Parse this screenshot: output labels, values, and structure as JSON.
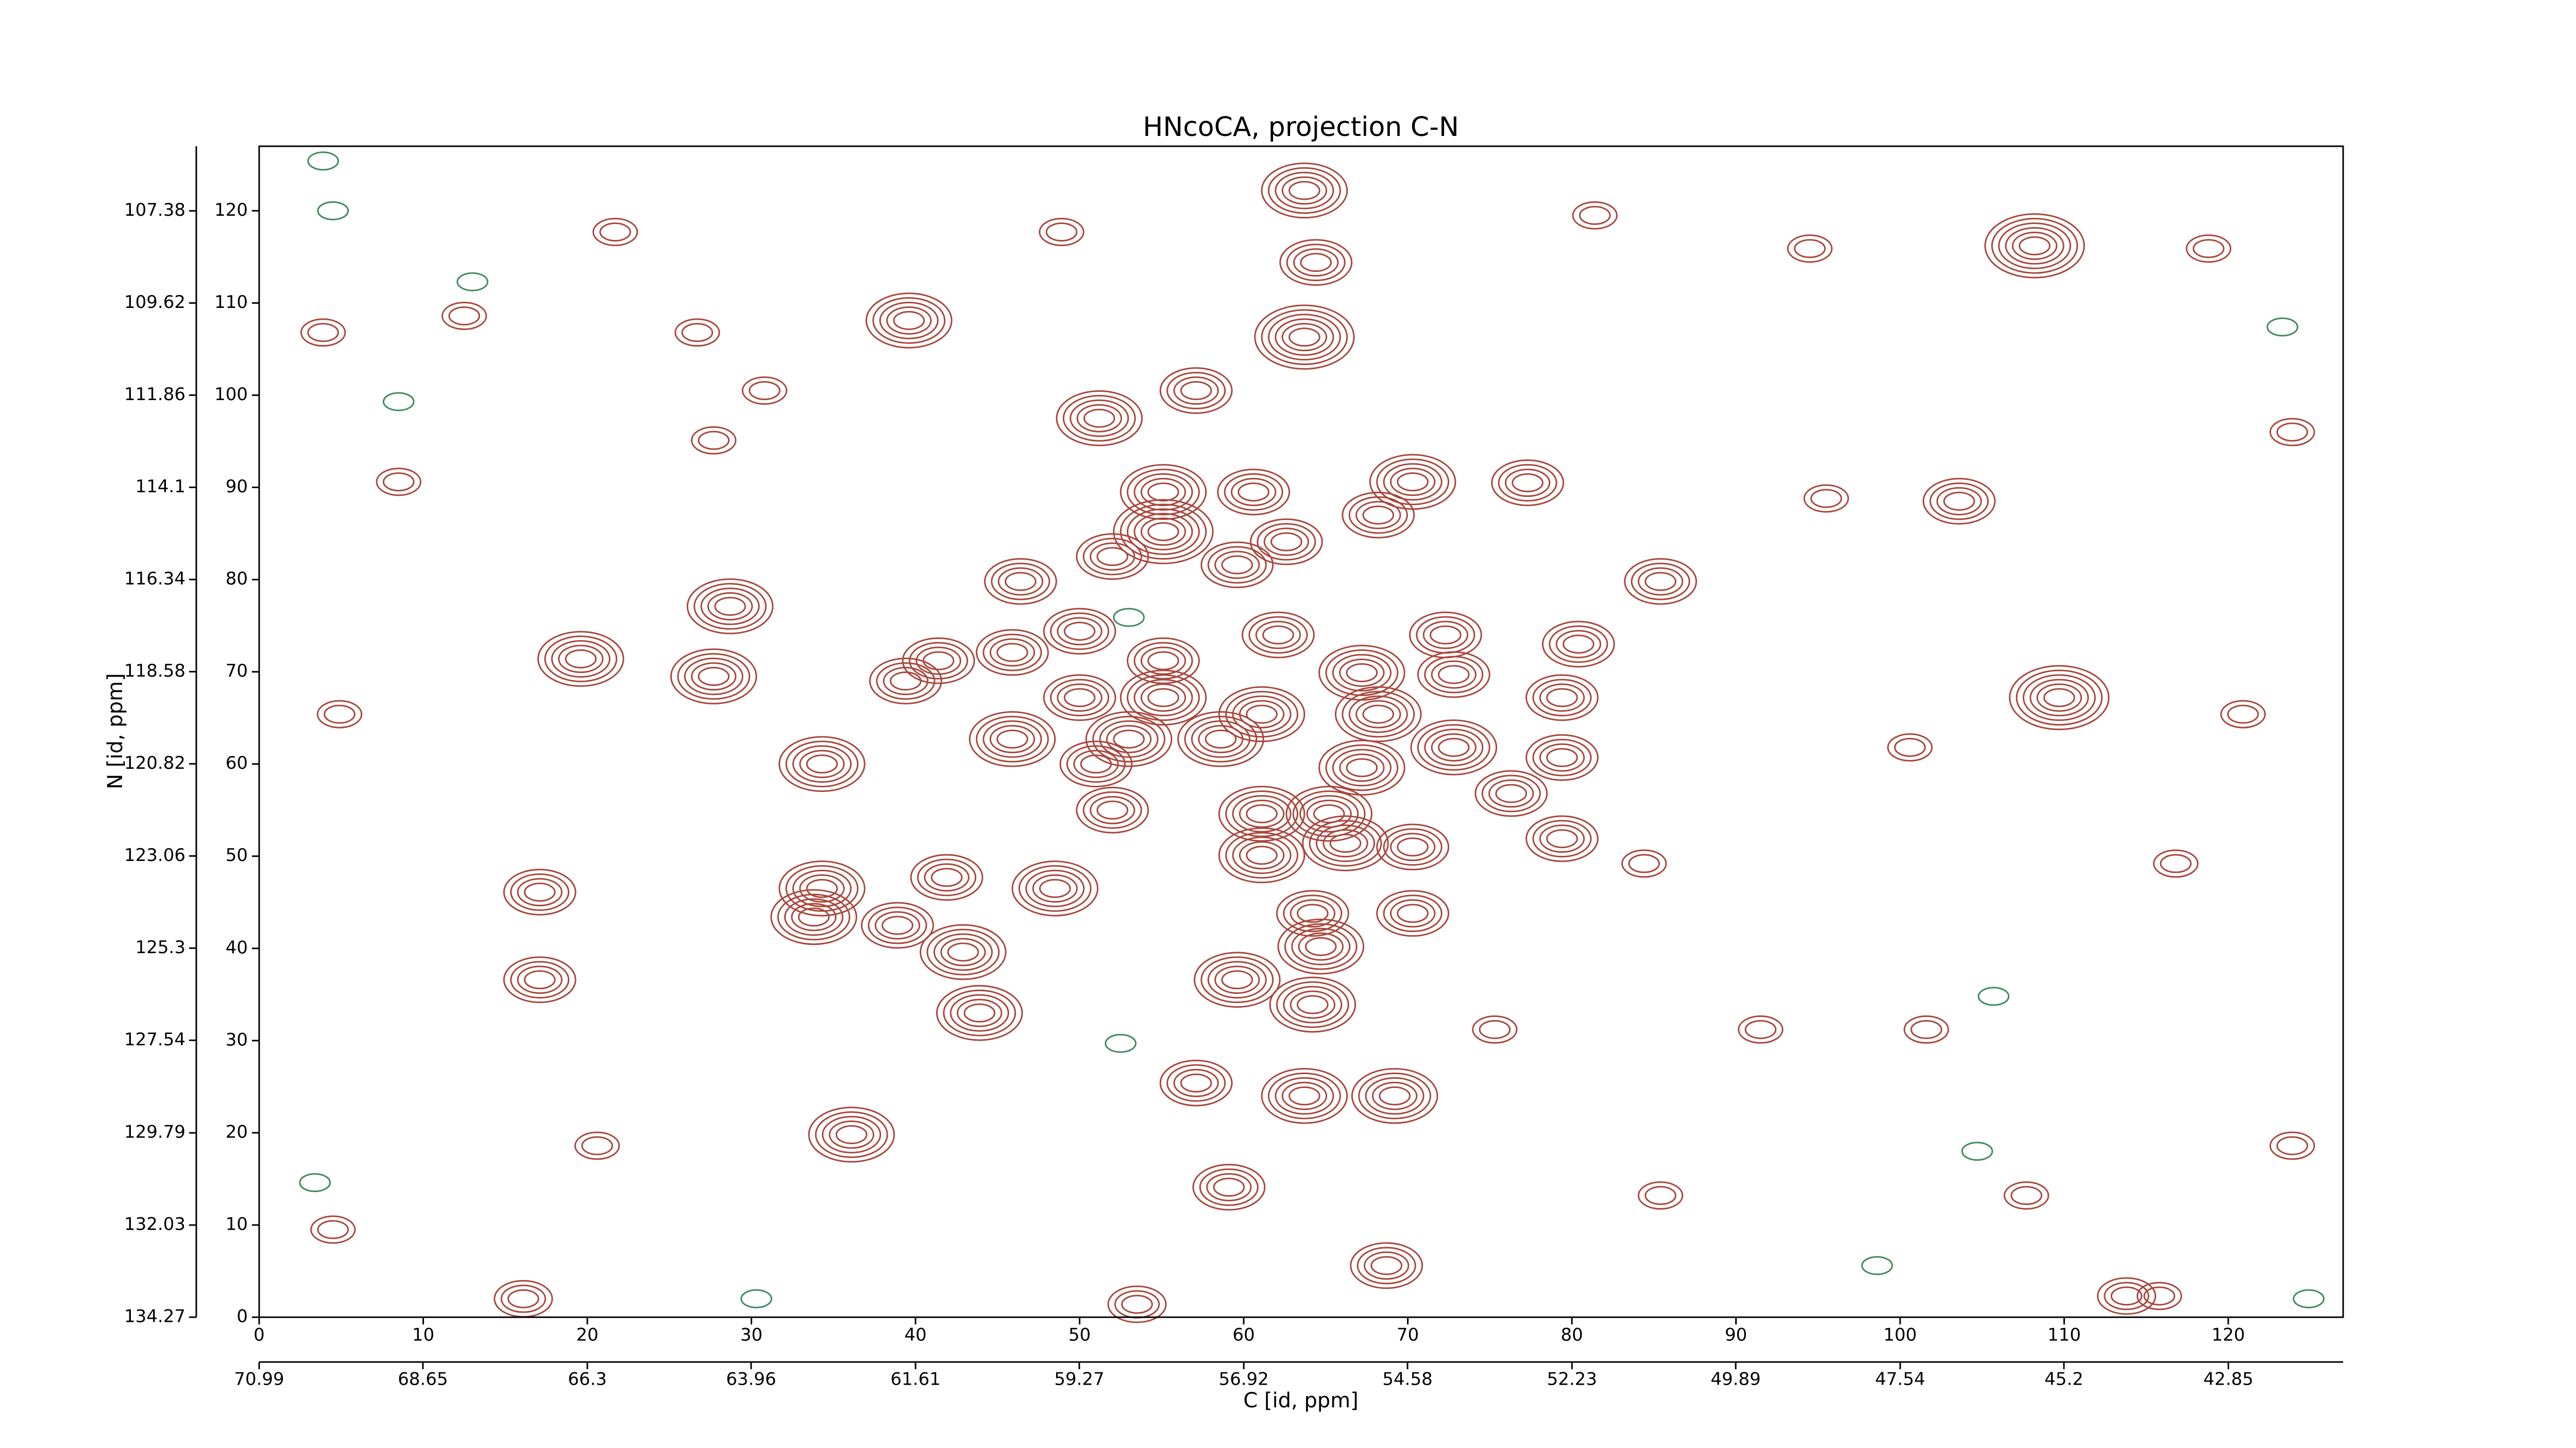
{
  "chart_data": {
    "type": "contour",
    "title": "HNcoCA, projection C-N",
    "xlabel": "C [id, ppm]",
    "ylabel": "N [id, ppm]",
    "xlim": [
      0,
      127
    ],
    "ylim": [
      0,
      127
    ],
    "xticks": [
      0,
      10,
      20,
      30,
      40,
      50,
      60,
      70,
      80,
      90,
      100,
      110,
      120
    ],
    "yticks": [
      0,
      10,
      20,
      30,
      40,
      50,
      60,
      70,
      80,
      90,
      100,
      110,
      120
    ],
    "x2lim": [
      70.99,
      41.21
    ],
    "x2ticks": [
      70.99,
      68.65,
      66.3,
      63.96,
      61.61,
      59.27,
      56.92,
      54.58,
      52.23,
      49.89,
      47.54,
      45.2,
      42.85
    ],
    "y2lim": [
      134.27,
      105.81
    ],
    "y2ticks": [
      134.27,
      132.03,
      129.79,
      127.54,
      125.3,
      123.06,
      120.82,
      118.58,
      116.34,
      114.1,
      111.86,
      109.62,
      107.38
    ],
    "series": [
      {
        "color": "#a8473d",
        "x": [
          63.7,
          64.4,
          108.2,
          39.6,
          63.7,
          51.2,
          57.1,
          103.6,
          55.1,
          60.6,
          70.3,
          77.3,
          68.2,
          55.1,
          52,
          62.6,
          59.6,
          46.4,
          85.4,
          28.7,
          50,
          45.9,
          62.1,
          72.3,
          80.4,
          19.6,
          27.7,
          41.4,
          39.4,
          55.1,
          67.2,
          72.8,
          79.4,
          109.7,
          50,
          55.1,
          61.1,
          68.2,
          45.9,
          53,
          58.6,
          72.8,
          67.2,
          79.4,
          34.3,
          51,
          52,
          76.3,
          61.1,
          65.2,
          79.4,
          66.2,
          61.1,
          70.3,
          48.5,
          41.9,
          34.3,
          17.1,
          33.8,
          38.9,
          64.2,
          70.3,
          42.9,
          64.7,
          59.6,
          64.2,
          43.9,
          17.1,
          57.1,
          63.7,
          69.2,
          36.1,
          59.1,
          68.7,
          53.5,
          16.1,
          113.8,
          3.9,
          12.5,
          26.7,
          30.8,
          27.7,
          4.9,
          95.5,
          123.9,
          120.9,
          100.6,
          116.8,
          101.6,
          107.7,
          123.9,
          4.5,
          20.6,
          85.4,
          91.5,
          84.4,
          8.5,
          21.7,
          94.5,
          118.8,
          81.4,
          48.9,
          75.3,
          115.8
        ],
        "y": [
          122.2,
          114.4,
          116.2,
          108.1,
          106.3,
          97.5,
          100.5,
          88.5,
          89.5,
          89.5,
          90.6,
          90.5,
          87,
          85.2,
          82.5,
          84.1,
          81.6,
          79.8,
          79.8,
          77.1,
          74.4,
          72.1,
          74,
          74,
          73,
          71.4,
          69.5,
          71.2,
          69,
          71.2,
          69.9,
          69.7,
          67.2,
          67.2,
          67.2,
          67.2,
          65.4,
          65.4,
          62.7,
          62.7,
          62.7,
          61.8,
          59.6,
          60.7,
          60,
          60,
          55,
          56.8,
          54.6,
          54.6,
          51.9,
          51.4,
          50.1,
          51,
          46.5,
          47.7,
          46.5,
          46.1,
          43.4,
          42.5,
          43.8,
          43.8,
          39.6,
          40.2,
          36.6,
          33.9,
          33,
          36.6,
          25.4,
          24,
          24,
          19.8,
          14.1,
          5.6,
          1.4,
          2,
          2.3,
          106.8,
          108.6,
          106.8,
          100.5,
          95.1,
          65.4,
          88.8,
          96,
          65.4,
          61.8,
          49.2,
          31.2,
          13.2,
          18.6,
          9.5,
          18.6,
          13.2,
          31.2,
          49.2,
          90.6,
          117.7,
          115.9,
          115.9,
          119.5,
          117.7,
          31.2,
          2.3
        ],
        "levels": [
          5,
          4,
          6,
          5,
          6,
          5,
          4,
          4,
          5,
          4,
          5,
          4,
          4,
          6,
          4,
          4,
          4,
          4,
          4,
          5,
          4,
          4,
          4,
          4,
          4,
          5,
          5,
          4,
          4,
          4,
          5,
          4,
          4,
          6,
          4,
          5,
          5,
          5,
          5,
          5,
          5,
          5,
          5,
          4,
          5,
          4,
          4,
          4,
          5,
          5,
          4,
          5,
          5,
          4,
          5,
          4,
          5,
          4,
          5,
          4,
          4,
          4,
          5,
          5,
          5,
          5,
          5,
          4,
          4,
          5,
          5,
          5,
          4,
          4,
          3,
          3,
          3,
          2,
          2,
          2,
          2,
          2,
          2,
          2,
          2,
          2,
          2,
          2,
          2,
          2,
          2,
          2,
          2,
          2,
          2,
          2,
          2,
          2,
          2,
          2,
          2,
          2,
          2,
          2
        ]
      },
      {
        "color": "#3d8a5a",
        "x": [
          3.9,
          4.5,
          8.5,
          13.0,
          53,
          98.6,
          104.7,
          105.7,
          52.5,
          3.4,
          30.3,
          124.9,
          123.3
        ],
        "y": [
          125.4,
          120,
          99.3,
          112.3,
          75.9,
          5.6,
          18,
          34.8,
          29.7,
          14.6,
          2,
          2,
          107.4
        ],
        "levels": [
          1,
          1,
          1,
          1,
          1,
          1,
          1,
          1,
          1,
          1,
          1,
          1,
          1
        ]
      }
    ]
  }
}
